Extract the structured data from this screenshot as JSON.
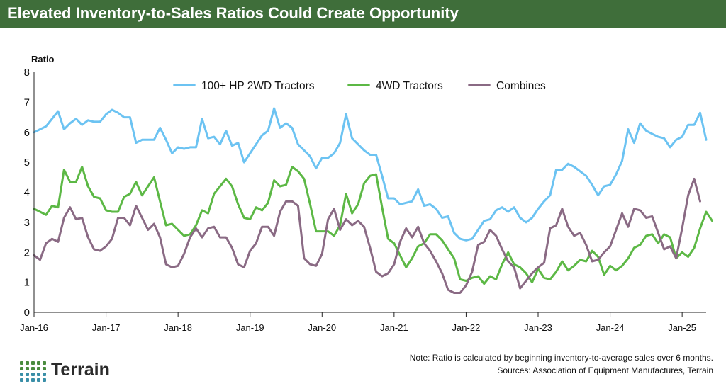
{
  "header": {
    "title": "Elevated Inventory-to-Sales Ratios Could Create Opportunity"
  },
  "footer": {
    "note": "Note: Ratio is calculated by beginning inventory-to-average sales over 6 months.",
    "sources": "Sources: Association of Equipment Manufactures, Terrain",
    "brand": "Terrain"
  },
  "colors": {
    "header_bg": "#3f6e3a",
    "series_2wd": "#6cc3f2",
    "series_4wd": "#5cb845",
    "series_combines": "#8a6a84",
    "brand_green": "#4a8c3f"
  },
  "chart_data": {
    "type": "line",
    "title": "Elevated Inventory-to-Sales Ratios Could Create Opportunity",
    "ylabel": "Ratio",
    "xlabel": "",
    "ylim": [
      0,
      8
    ],
    "yticks": [
      "0",
      "1",
      "2",
      "3",
      "4",
      "5",
      "6",
      "7",
      "8"
    ],
    "x_start": "Jan-16",
    "x_ticks": [
      "Jan-16",
      "Jan-17",
      "Jan-18",
      "Jan-19",
      "Jan-20",
      "Jan-21",
      "Jan-22",
      "Jan-23",
      "Jan-24",
      "Jan-25"
    ],
    "legend_position": "top-center",
    "series": [
      {
        "name": "100+ HP 2WD Tractors",
        "color": "#6cc3f2",
        "values": [
          6.0,
          6.1,
          6.2,
          6.45,
          6.7,
          6.1,
          6.3,
          6.45,
          6.25,
          6.4,
          6.35,
          6.35,
          6.6,
          6.75,
          6.65,
          6.5,
          6.5,
          5.65,
          5.75,
          5.75,
          5.75,
          6.15,
          5.75,
          5.3,
          5.5,
          5.45,
          5.5,
          5.5,
          6.45,
          5.8,
          5.85,
          5.6,
          6.05,
          5.55,
          5.65,
          5.0,
          5.3,
          5.6,
          5.9,
          6.05,
          6.8,
          6.15,
          6.3,
          6.15,
          5.6,
          5.4,
          5.2,
          4.8,
          5.15,
          5.15,
          5.3,
          5.65,
          6.6,
          5.8,
          5.6,
          5.4,
          5.25,
          5.25,
          4.55,
          3.8,
          3.8,
          3.6,
          3.65,
          3.7,
          4.1,
          3.55,
          3.6,
          3.45,
          3.15,
          3.2,
          2.65,
          2.45,
          2.4,
          2.45,
          2.75,
          3.05,
          3.1,
          3.4,
          3.5,
          3.35,
          3.5,
          3.15,
          3.0,
          3.15,
          3.45,
          3.7,
          3.9,
          4.75,
          4.75,
          4.95,
          4.85,
          4.7,
          4.55,
          4.25,
          3.9,
          4.2,
          4.25,
          4.6,
          5.05,
          6.1,
          5.65,
          6.3,
          6.05,
          5.95,
          5.85,
          5.8,
          5.5,
          5.75,
          5.85,
          6.25,
          6.25,
          6.65,
          5.75
        ]
      },
      {
        "name": "4WD Tractors",
        "color": "#5cb845",
        "values": [
          3.45,
          3.35,
          3.25,
          3.55,
          3.5,
          4.75,
          4.35,
          4.35,
          4.85,
          4.2,
          3.85,
          3.8,
          3.4,
          3.35,
          3.35,
          3.85,
          3.95,
          4.35,
          3.9,
          4.2,
          4.5,
          3.7,
          2.9,
          2.95,
          2.75,
          2.55,
          2.6,
          2.9,
          3.4,
          3.3,
          3.95,
          4.2,
          4.45,
          4.2,
          3.6,
          3.15,
          3.1,
          3.5,
          3.4,
          3.65,
          4.4,
          4.2,
          4.25,
          4.85,
          4.7,
          4.45,
          3.6,
          2.7,
          2.7,
          2.7,
          2.55,
          2.9,
          3.95,
          3.3,
          3.6,
          4.3,
          4.55,
          4.6,
          3.5,
          2.45,
          2.3,
          1.9,
          1.5,
          1.8,
          2.2,
          2.3,
          2.6,
          2.6,
          2.4,
          2.1,
          1.8,
          1.1,
          1.05,
          1.15,
          1.2,
          0.95,
          1.2,
          1.1,
          1.6,
          2.0,
          1.6,
          1.5,
          1.3,
          1.0,
          1.45,
          1.15,
          1.1,
          1.35,
          1.7,
          1.4,
          1.55,
          1.75,
          1.7,
          2.05,
          1.85,
          1.25,
          1.55,
          1.4,
          1.55,
          1.8,
          2.15,
          2.25,
          2.55,
          2.6,
          2.3,
          2.6,
          2.5,
          1.8,
          2.0,
          1.85,
          2.15,
          2.8,
          3.35,
          3.05
        ]
      },
      {
        "name": "Combines",
        "color": "#8a6a84",
        "values": [
          1.9,
          1.75,
          2.3,
          2.45,
          2.35,
          3.15,
          3.5,
          3.1,
          3.15,
          2.5,
          2.1,
          2.05,
          2.2,
          2.45,
          3.15,
          3.15,
          2.9,
          3.55,
          3.15,
          2.75,
          2.95,
          2.5,
          1.6,
          1.5,
          1.55,
          1.95,
          2.5,
          2.8,
          2.5,
          2.8,
          2.85,
          2.5,
          2.5,
          2.15,
          1.6,
          1.5,
          2.05,
          2.3,
          2.85,
          2.85,
          2.55,
          3.35,
          3.7,
          3.7,
          3.55,
          1.8,
          1.6,
          1.55,
          1.95,
          3.1,
          3.45,
          2.75,
          3.1,
          2.9,
          3.05,
          2.85,
          2.15,
          1.35,
          1.2,
          1.3,
          1.6,
          2.35,
          2.8,
          2.5,
          2.85,
          2.3,
          2.05,
          1.7,
          1.3,
          0.75,
          0.65,
          0.65,
          0.9,
          1.35,
          2.25,
          2.35,
          2.75,
          2.55,
          2.1,
          1.7,
          1.5,
          0.8,
          1.05,
          1.3,
          1.5,
          1.65,
          2.8,
          2.9,
          3.45,
          2.85,
          2.55,
          2.65,
          2.25,
          1.7,
          1.75,
          2.0,
          2.2,
          2.75,
          3.3,
          2.85,
          3.45,
          3.4,
          3.15,
          3.2,
          2.65,
          2.1,
          2.2,
          1.8,
          2.8,
          3.9,
          4.45,
          3.7
        ]
      }
    ]
  }
}
